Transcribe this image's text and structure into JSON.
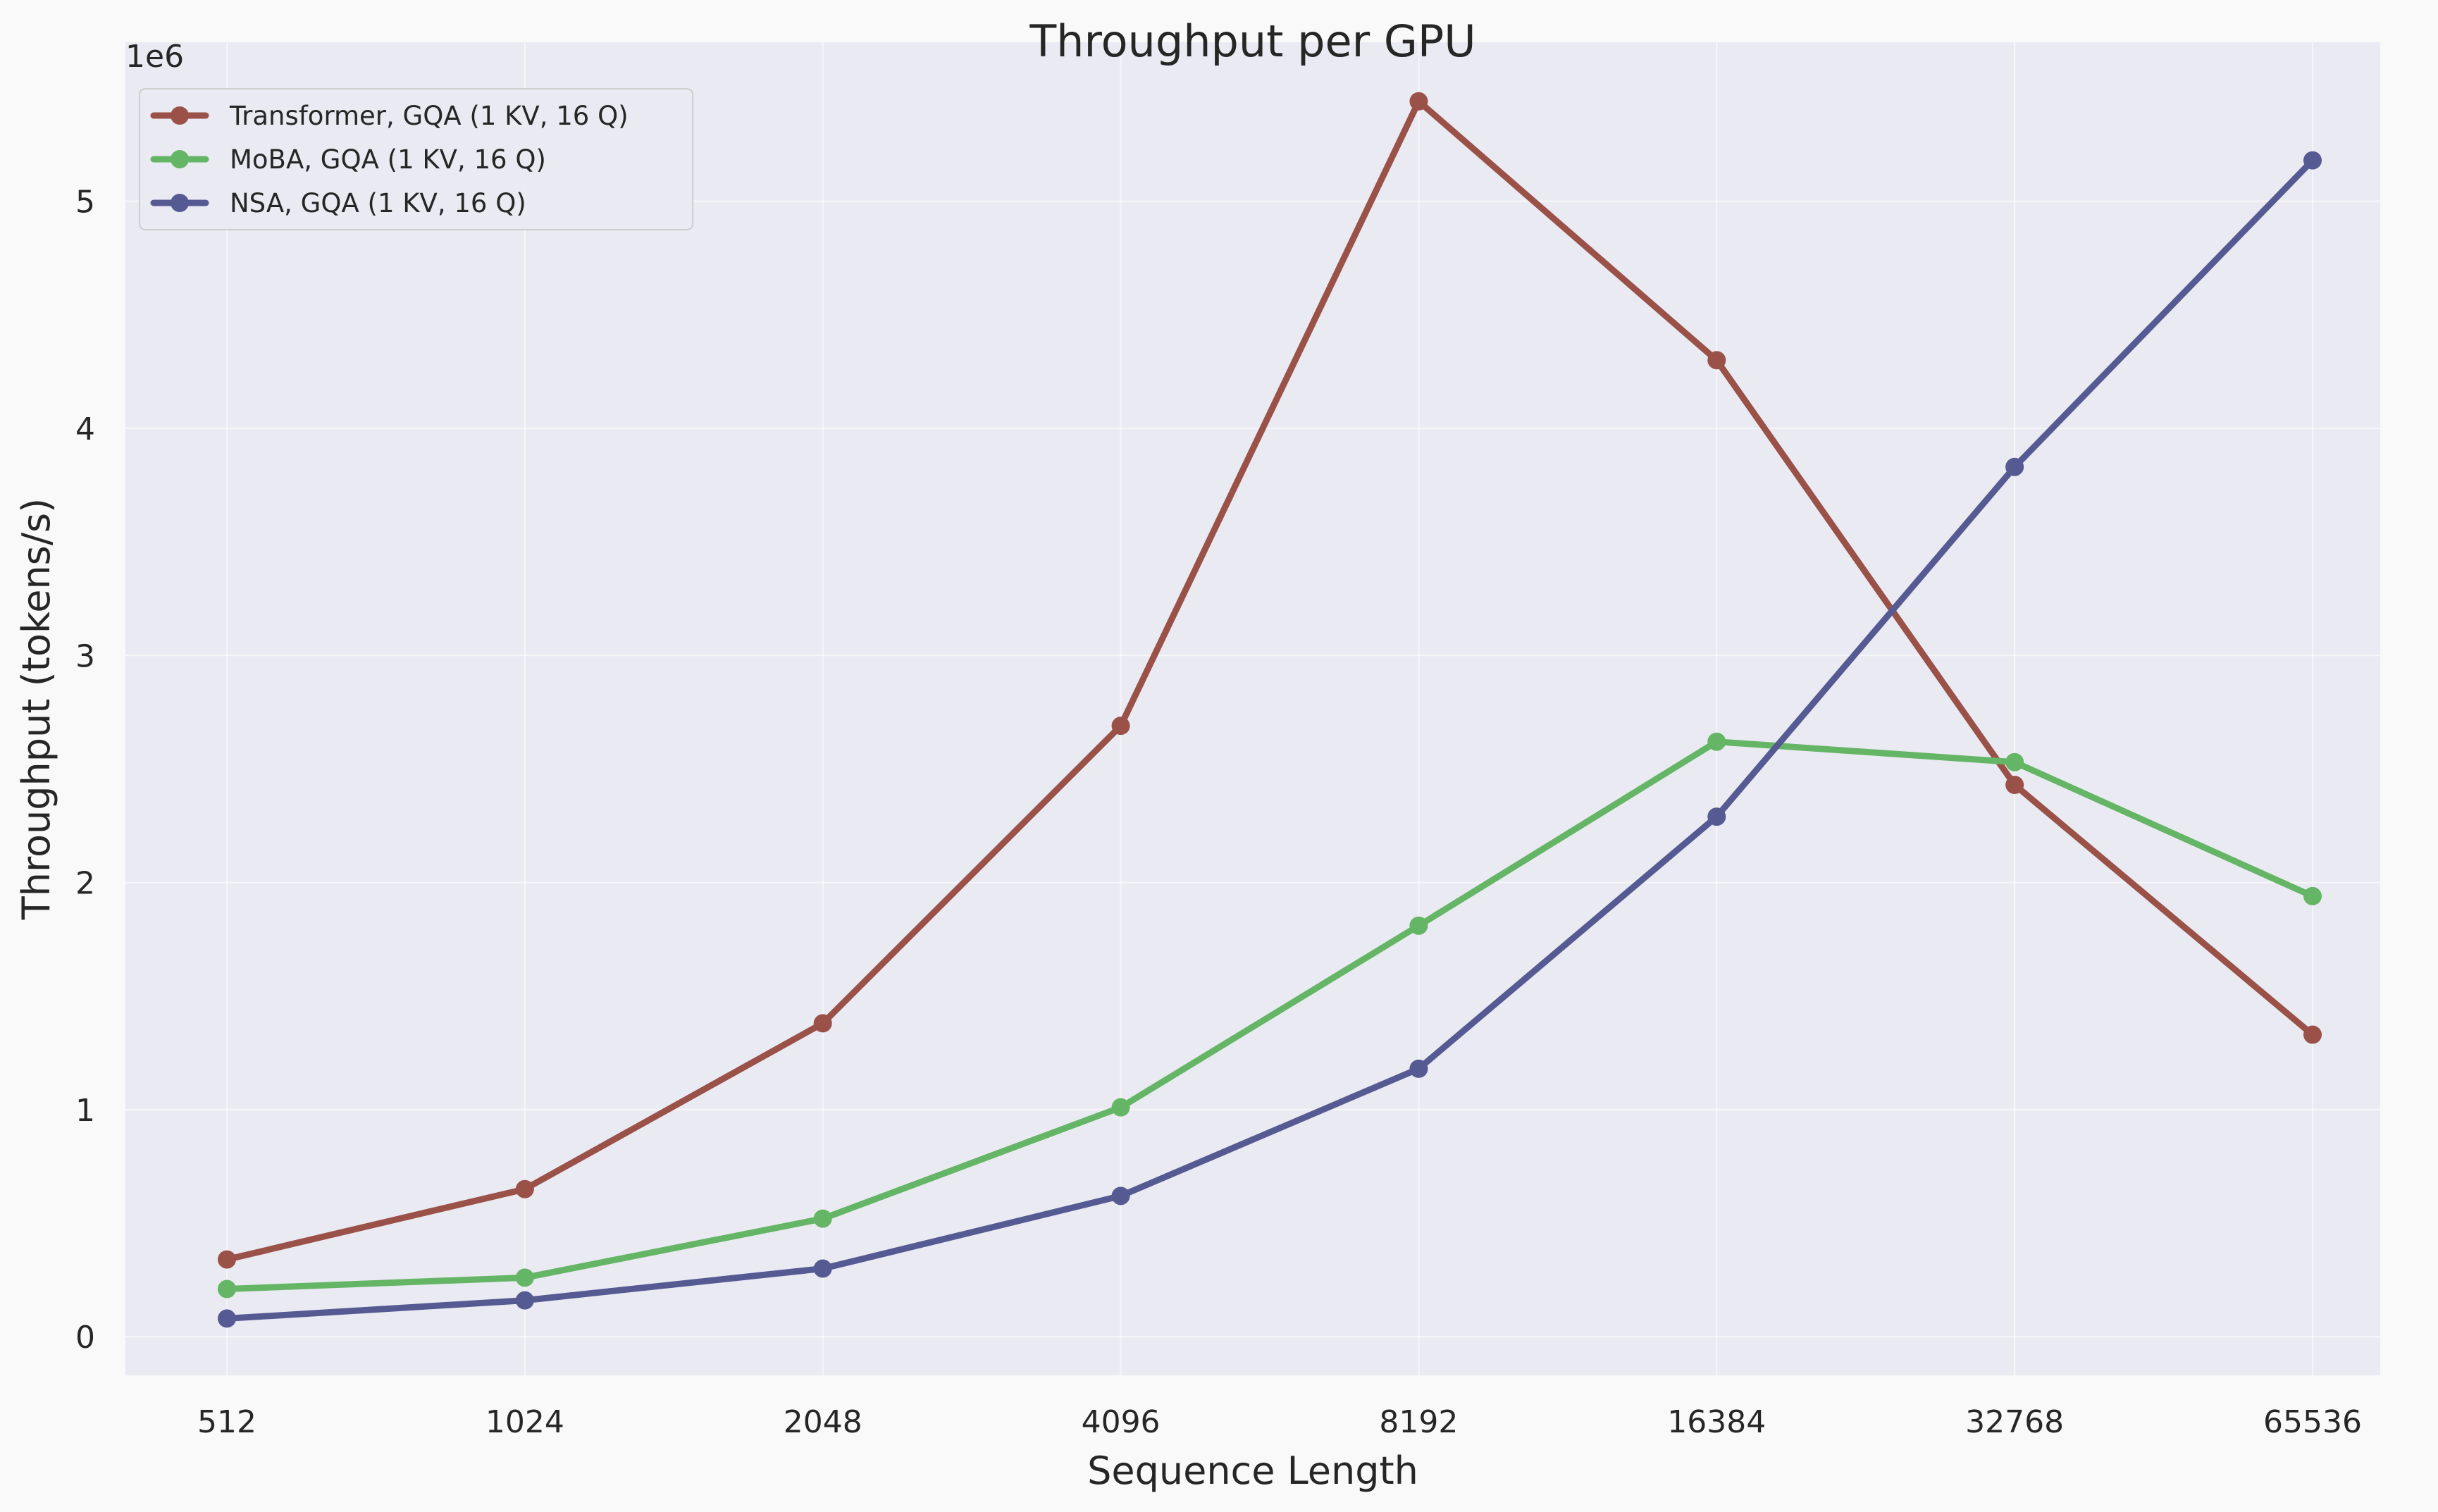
{
  "chart_data": {
    "type": "line",
    "title": "Throughput per GPU",
    "xlabel": "Sequence Length",
    "ylabel": "Throughput (tokens/s)",
    "y_offset_label": "1e6",
    "x": [
      512,
      1024,
      2048,
      4096,
      8192,
      16384,
      32768,
      65536
    ],
    "x_tick_labels": [
      "512",
      "1024",
      "2048",
      "4096",
      "8192",
      "16384",
      "32768",
      "65536"
    ],
    "y_ticks": [
      0,
      1,
      2,
      3,
      4,
      5
    ],
    "y_tick_labels": [
      "0",
      "1",
      "2",
      "3",
      "4",
      "5"
    ],
    "ylim": [
      -0.17,
      5.7
    ],
    "grid": true,
    "legend_position": "top-left",
    "series": [
      {
        "name": "Transformer, GQA (1 KV, 16 Q)",
        "color": "#9a5148",
        "values": [
          0.34,
          0.65,
          1.38,
          2.69,
          5.44,
          4.3,
          2.43,
          1.33
        ]
      },
      {
        "name": "MoBA, GQA (1 KV, 16 Q)",
        "color": "#64b565",
        "values": [
          0.21,
          0.26,
          0.52,
          1.01,
          1.81,
          2.62,
          2.53,
          1.94
        ]
      },
      {
        "name": "NSA, GQA (1 KV, 16 Q)",
        "color": "#555a92",
        "values": [
          0.08,
          0.16,
          0.3,
          0.62,
          1.18,
          2.29,
          3.83,
          5.18
        ]
      }
    ]
  }
}
